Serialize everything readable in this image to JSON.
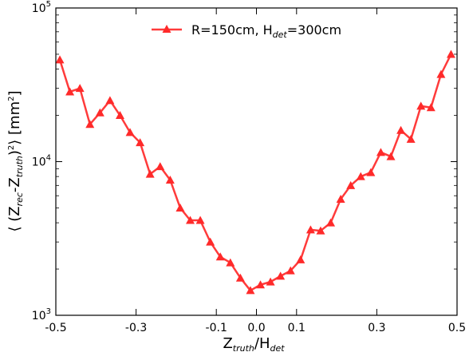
{
  "chart_data": {
    "type": "line",
    "x_title": {
      "base": "Z",
      "sub": "truth",
      "mid": "/H",
      "sub2": "det"
    },
    "y_title": {
      "open": "⟨ (Z",
      "sub1": "rec",
      "mid": "-Z",
      "sub2": "truth",
      "close": ")",
      "sup": "2",
      "tail": "⟩ [mm",
      "sup2": "2",
      "end": "]"
    },
    "xlim": [
      -0.5,
      0.5
    ],
    "ylim": [
      1000,
      100000
    ],
    "y_log": true,
    "x_ticks": [
      -0.5,
      -0.3,
      -0.1,
      0.0,
      0.1,
      0.3,
      0.5
    ],
    "x_tick_labels": [
      "-0.5",
      "-0.3",
      "-0.1",
      "0.0",
      "0.1",
      "0.3",
      "0.5"
    ],
    "y_ticks": [
      1000,
      10000,
      100000
    ],
    "y_tick_labels": [
      {
        "base": "10",
        "exp": "3"
      },
      {
        "base": "10",
        "exp": "4"
      },
      {
        "base": "10",
        "exp": "5"
      }
    ],
    "legend": {
      "location": "top-center",
      "label": {
        "pre": "R=150cm, H",
        "sub": "det",
        "post": "=300cm"
      }
    },
    "colors": {
      "line": "#ff3b3b",
      "marker": "#ff2a2a"
    },
    "series": [
      {
        "x": [
          -0.49,
          -0.465,
          -0.44,
          -0.415,
          -0.39,
          -0.365,
          -0.34,
          -0.315,
          -0.29,
          -0.265,
          -0.24,
          -0.215,
          -0.19,
          -0.165,
          -0.14,
          -0.115,
          -0.09,
          -0.065,
          -0.04,
          -0.015,
          0.01,
          0.035,
          0.06,
          0.085,
          0.11,
          0.135,
          0.16,
          0.185,
          0.21,
          0.235,
          0.26,
          0.285,
          0.31,
          0.335,
          0.36,
          0.385,
          0.41,
          0.435,
          0.46,
          0.485
        ],
        "y": [
          46000,
          28500,
          30000,
          17500,
          20800,
          25000,
          20000,
          15500,
          13300,
          8300,
          9300,
          7600,
          5000,
          4150,
          4150,
          3000,
          2400,
          2200,
          1750,
          1450,
          1580,
          1650,
          1800,
          1950,
          2300,
          3600,
          3550,
          4000,
          5700,
          7000,
          8000,
          8500,
          11500,
          10800,
          16000,
          14000,
          23000,
          22500,
          37000,
          50000
        ]
      }
    ]
  }
}
